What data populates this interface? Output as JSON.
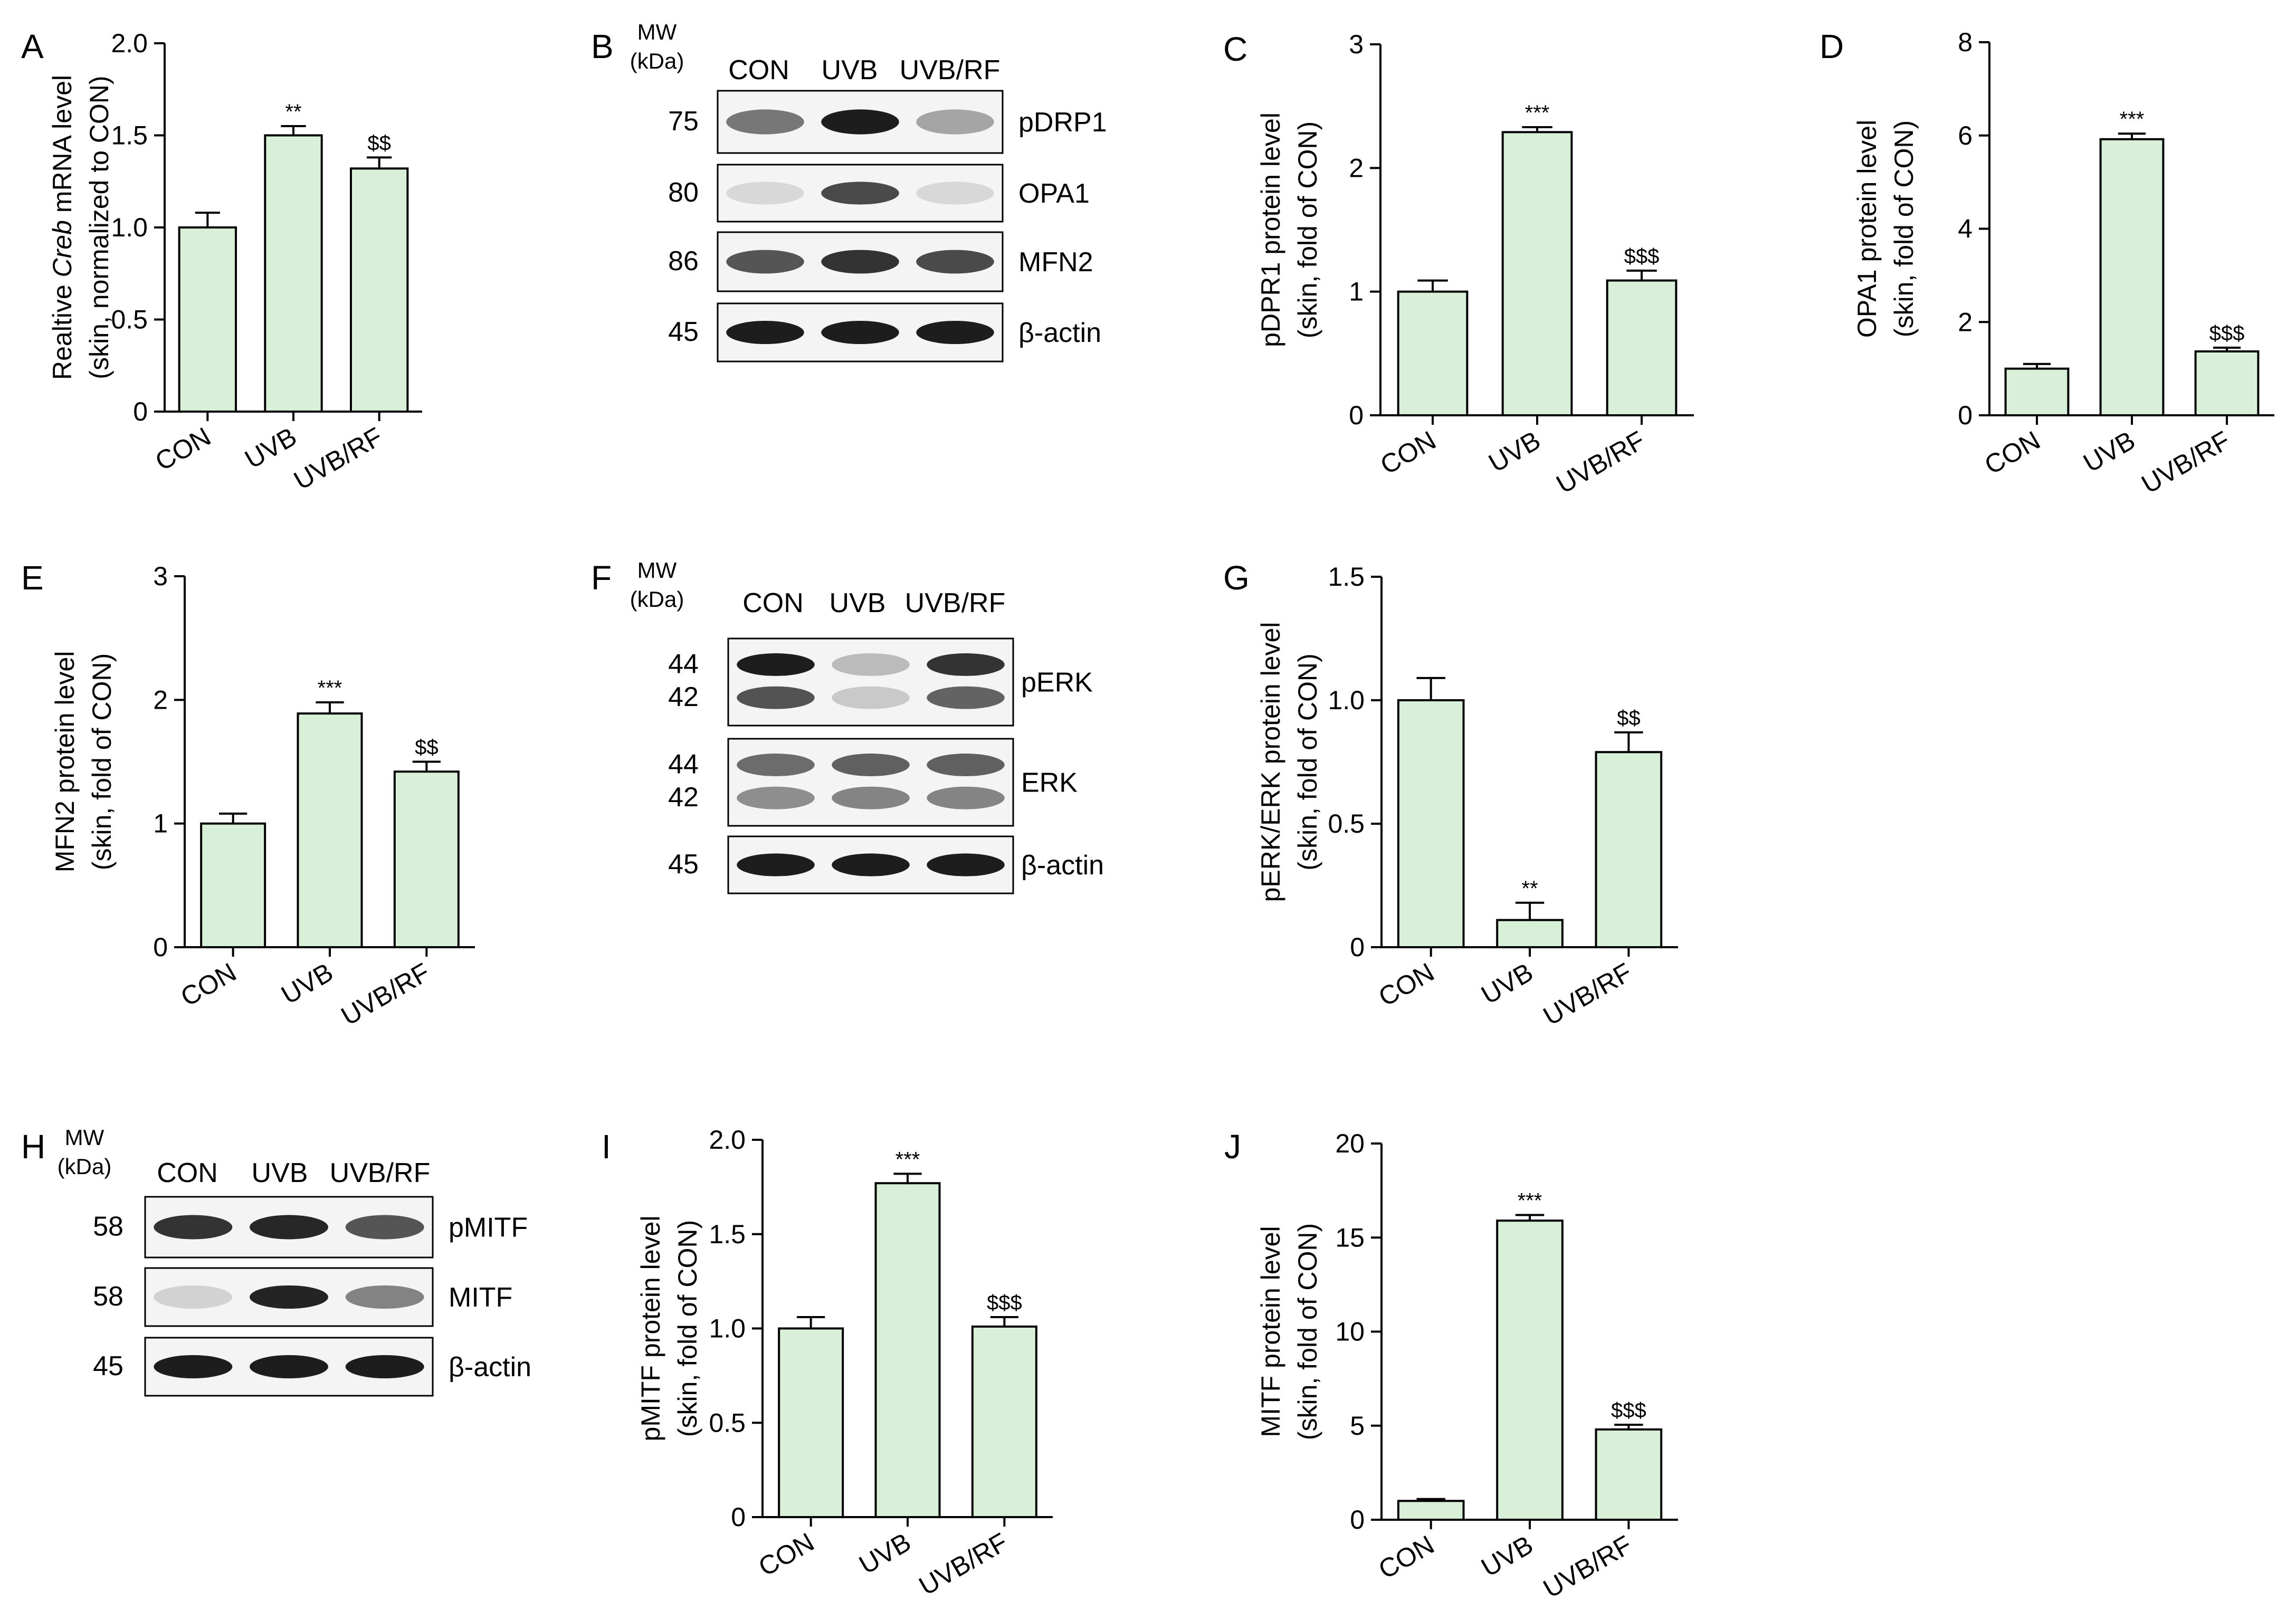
{
  "colors": {
    "bar_fill": "#d8f0d8",
    "bar_stroke": "#000000",
    "axis": "#000000"
  },
  "categories": [
    "CON",
    "UVB",
    "UVB/RF"
  ],
  "chart_data": [
    {
      "panel": "A",
      "type": "bar",
      "ylabel_prefix": "Realtive ",
      "ylabel_italic": "Creb",
      "ylabel_suffix": " mRNA level",
      "ylabel2": "(skin, normalized to CON)",
      "ylim": [
        0,
        2.0
      ],
      "ticks": [
        "0",
        "0.5",
        "1.0",
        "1.5",
        "2.0"
      ],
      "categories": [
        "CON",
        "UVB",
        "UVB/RF"
      ],
      "values": [
        1.0,
        1.5,
        1.32
      ],
      "errors": [
        0.08,
        0.05,
        0.06
      ],
      "significance": [
        "",
        "**",
        "$$"
      ]
    },
    {
      "panel": "C",
      "type": "bar",
      "ylabel": "pDPR1 protein level",
      "ylabel2": "(skin, fold of CON)",
      "ylim": [
        0,
        3
      ],
      "ticks": [
        "0",
        "1",
        "2",
        "3"
      ],
      "categories": [
        "CON",
        "UVB",
        "UVB/RF"
      ],
      "values": [
        1.0,
        2.29,
        1.09
      ],
      "errors": [
        0.09,
        0.04,
        0.08
      ],
      "significance": [
        "",
        "***",
        "$$$"
      ]
    },
    {
      "panel": "D",
      "type": "bar",
      "ylabel": "OPA1 protein level",
      "ylabel2": "(skin, fold of CON)",
      "ylim": [
        0,
        8
      ],
      "ticks": [
        "0",
        "2",
        "4",
        "6",
        "8"
      ],
      "categories": [
        "CON",
        "UVB",
        "UVB/RF"
      ],
      "values": [
        1.0,
        5.92,
        1.37
      ],
      "errors": [
        0.1,
        0.12,
        0.08
      ],
      "significance": [
        "",
        "***",
        "$$$"
      ]
    },
    {
      "panel": "E",
      "type": "bar",
      "ylabel": "MFN2 protein level",
      "ylabel2": "(skin, fold of CON)",
      "ylim": [
        0,
        3
      ],
      "ticks": [
        "0",
        "1",
        "2",
        "3"
      ],
      "categories": [
        "CON",
        "UVB",
        "UVB/RF"
      ],
      "values": [
        1.0,
        1.89,
        1.42
      ],
      "errors": [
        0.08,
        0.09,
        0.08
      ],
      "significance": [
        "",
        "***",
        "$$"
      ]
    },
    {
      "panel": "G",
      "type": "bar",
      "ylabel": "pERK/ERK protein level",
      "ylabel2": "(skin, fold of CON)",
      "ylim": [
        0,
        1.5
      ],
      "ticks": [
        "0",
        "0.5",
        "1.0",
        "1.5"
      ],
      "categories": [
        "CON",
        "UVB",
        "UVB/RF"
      ],
      "values": [
        1.0,
        0.11,
        0.79
      ],
      "errors": [
        0.09,
        0.07,
        0.08
      ],
      "significance": [
        "",
        "**",
        "$$"
      ]
    },
    {
      "panel": "I",
      "type": "bar",
      "ylabel": "pMITF protein level",
      "ylabel2": "(skin, fold of CON)",
      "ylim": [
        0,
        2.0
      ],
      "ticks": [
        "0",
        "0.5",
        "1.0",
        "1.5",
        "2.0"
      ],
      "categories": [
        "CON",
        "UVB",
        "UVB/RF"
      ],
      "values": [
        1.0,
        1.77,
        1.01
      ],
      "errors": [
        0.06,
        0.05,
        0.05
      ],
      "significance": [
        "",
        "***",
        "$$$"
      ]
    },
    {
      "panel": "J",
      "type": "bar",
      "ylabel": "MITF protein level",
      "ylabel2": "(skin, fold of CON)",
      "ylim": [
        0,
        20
      ],
      "ticks": [
        "0",
        "5",
        "10",
        "15",
        "20"
      ],
      "categories": [
        "CON",
        "UVB",
        "UVB/RF"
      ],
      "values": [
        1.0,
        15.9,
        4.8
      ],
      "errors": [
        0.1,
        0.3,
        0.25
      ],
      "significance": [
        "",
        "***",
        "$$$"
      ]
    }
  ],
  "blots": [
    {
      "panel": "B",
      "mw_label": "MW",
      "kda_label": "(kDa)",
      "lanes": [
        "CON",
        "UVB",
        "UVB/RF"
      ],
      "rows": [
        {
          "mw": [
            "75"
          ],
          "label": "pDRP1",
          "intensity": [
            0.55,
            0.95,
            0.35
          ]
        },
        {
          "mw": [
            "80"
          ],
          "label": "OPA1",
          "intensity": [
            0.12,
            0.75,
            0.12
          ]
        },
        {
          "mw": [
            "86"
          ],
          "label": "MFN2",
          "intensity": [
            0.7,
            0.85,
            0.75
          ]
        },
        {
          "mw": [
            "45"
          ],
          "label": "β-actin",
          "intensity": [
            0.95,
            0.95,
            0.95
          ]
        }
      ]
    },
    {
      "panel": "F",
      "mw_label": "MW",
      "kda_label": "(kDa)",
      "lanes": [
        "CON",
        "UVB",
        "UVB/RF"
      ],
      "rows": [
        {
          "mw": [
            "44",
            "42"
          ],
          "label": "pERK",
          "intensity": [
            0.95,
            0.25,
            0.85
          ],
          "double": true
        },
        {
          "mw": [
            "44",
            "42"
          ],
          "label": "ERK",
          "intensity": [
            0.6,
            0.65,
            0.65
          ],
          "double": true
        },
        {
          "mw": [
            "45"
          ],
          "label": "β-actin",
          "intensity": [
            0.95,
            0.95,
            0.95
          ]
        }
      ]
    },
    {
      "panel": "H",
      "mw_label": "MW",
      "kda_label": "(kDa)",
      "lanes": [
        "CON",
        "UVB",
        "UVB/RF"
      ],
      "rows": [
        {
          "mw": [
            "58"
          ],
          "label": "pMITF",
          "intensity": [
            0.85,
            0.9,
            0.7
          ]
        },
        {
          "mw": [
            "58"
          ],
          "label": "MITF",
          "intensity": [
            0.15,
            0.92,
            0.5
          ]
        },
        {
          "mw": [
            "45"
          ],
          "label": "β-actin",
          "intensity": [
            0.95,
            0.95,
            0.95
          ]
        }
      ]
    }
  ]
}
